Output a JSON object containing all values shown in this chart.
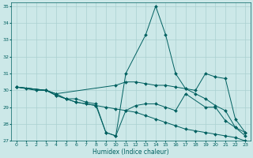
{
  "xlabel": "Humidex (Indice chaleur)",
  "xlim": [
    -0.5,
    23.5
  ],
  "ylim": [
    27,
    35.2
  ],
  "xticks": [
    0,
    1,
    2,
    3,
    4,
    5,
    6,
    7,
    8,
    9,
    10,
    11,
    12,
    13,
    14,
    15,
    16,
    17,
    18,
    19,
    20,
    21,
    22,
    23
  ],
  "yticks": [
    27,
    28,
    29,
    30,
    31,
    32,
    33,
    34,
    35
  ],
  "background_color": "#cce8e8",
  "grid_color": "#aad0d0",
  "line_color": "#006060",
  "lines": [
    {
      "x": [
        0,
        1,
        2,
        3,
        4,
        5,
        6,
        7,
        8,
        9,
        10,
        11,
        12,
        13,
        14,
        15,
        16,
        17,
        18,
        19,
        20,
        21,
        22,
        23
      ],
      "y": [
        30.2,
        30.1,
        30.0,
        30.0,
        29.8,
        29.5,
        29.3,
        29.2,
        29.1,
        29.0,
        28.9,
        28.8,
        28.7,
        28.5,
        28.3,
        28.1,
        27.9,
        27.7,
        27.6,
        27.5,
        27.4,
        27.3,
        27.2,
        27.0
      ]
    },
    {
      "x": [
        0,
        3,
        4,
        5,
        6,
        7,
        8,
        9,
        10,
        11,
        13,
        14,
        15,
        16,
        17,
        18,
        19,
        20,
        21,
        22,
        23
      ],
      "y": [
        30.2,
        30.0,
        29.7,
        29.5,
        29.3,
        29.2,
        29.1,
        27.5,
        27.3,
        31.0,
        33.3,
        35.0,
        33.3,
        31.0,
        30.1,
        29.8,
        29.5,
        29.1,
        28.8,
        27.8,
        27.3
      ]
    },
    {
      "x": [
        0,
        3,
        4,
        10,
        11,
        12,
        13,
        14,
        15,
        16,
        17,
        18,
        19,
        20,
        21,
        22,
        23
      ],
      "y": [
        30.2,
        30.0,
        29.8,
        30.3,
        30.5,
        30.5,
        30.4,
        30.3,
        30.3,
        30.2,
        30.1,
        30.0,
        31.0,
        30.8,
        30.7,
        28.3,
        27.5
      ]
    },
    {
      "x": [
        0,
        3,
        4,
        5,
        6,
        7,
        8,
        9,
        10,
        11,
        12,
        13,
        14,
        15,
        16,
        17,
        19,
        20,
        21,
        22,
        23
      ],
      "y": [
        30.2,
        30.0,
        29.7,
        29.5,
        29.5,
        29.3,
        29.2,
        27.5,
        27.3,
        28.8,
        29.1,
        29.2,
        29.2,
        29.0,
        28.8,
        29.8,
        29.0,
        29.0,
        28.2,
        27.8,
        27.5
      ]
    }
  ]
}
